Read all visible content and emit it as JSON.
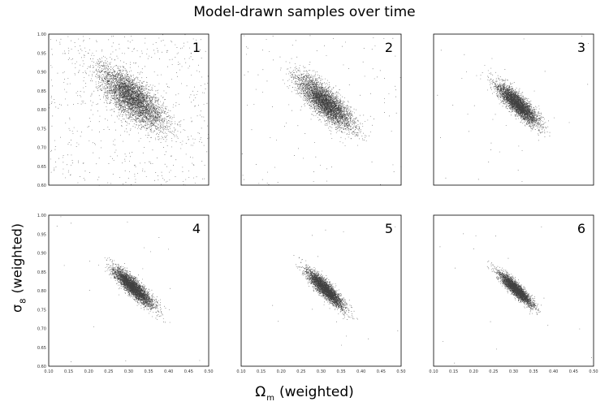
{
  "chart_data": {
    "type": "scatter",
    "title": "Model-drawn samples over time",
    "xlabel": {
      "symbol": "Ω",
      "subscript": "m",
      "text": "(weighted)"
    },
    "ylabel": {
      "symbol": "σ",
      "subscript": "8",
      "text": "(weighted)"
    },
    "xlim": [
      0.1,
      0.5
    ],
    "ylim": [
      0.6,
      1.0
    ],
    "x_ticks": [
      "0.10",
      "0.15",
      "0.20",
      "0.25",
      "0.30",
      "0.35",
      "0.40",
      "0.45",
      "0.50"
    ],
    "y_ticks": [
      "0.60",
      "0.65",
      "0.70",
      "0.75",
      "0.80",
      "0.85",
      "0.90",
      "0.95",
      "1.00"
    ],
    "grid": false,
    "panels": [
      {
        "label": "1",
        "center": [
          0.31,
          0.83
        ],
        "spread": [
          0.04,
          0.04
        ],
        "correlation": -0.75,
        "outlier_fraction": 0.12,
        "points": 5000
      },
      {
        "label": "2",
        "center": [
          0.31,
          0.82
        ],
        "spread": [
          0.033,
          0.033
        ],
        "correlation": -0.8,
        "outlier_fraction": 0.03,
        "points": 4500
      },
      {
        "label": "3",
        "center": [
          0.31,
          0.815
        ],
        "spread": [
          0.025,
          0.026
        ],
        "correlation": -0.85,
        "outlier_fraction": 0.01,
        "points": 4000
      },
      {
        "label": "4",
        "center": [
          0.31,
          0.81
        ],
        "spread": [
          0.024,
          0.025
        ],
        "correlation": -0.88,
        "outlier_fraction": 0.005,
        "points": 4000
      },
      {
        "label": "5",
        "center": [
          0.31,
          0.805
        ],
        "spread": [
          0.022,
          0.024
        ],
        "correlation": -0.89,
        "outlier_fraction": 0.005,
        "points": 3800
      },
      {
        "label": "6",
        "center": [
          0.305,
          0.805
        ],
        "spread": [
          0.02,
          0.021
        ],
        "correlation": -0.9,
        "outlier_fraction": 0.003,
        "points": 3500
      }
    ]
  }
}
